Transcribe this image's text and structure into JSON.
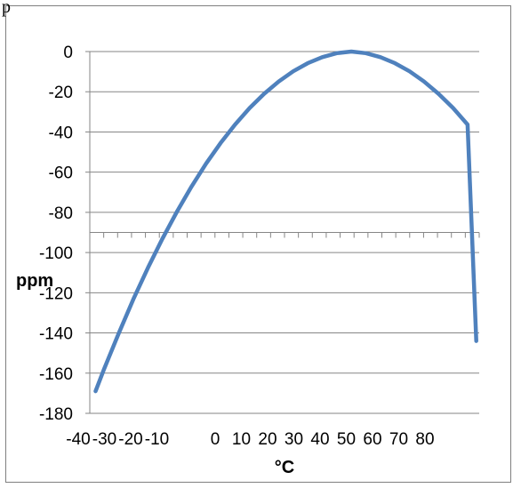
{
  "top_fragment": "p",
  "chart_data": {
    "type": "line",
    "title": "",
    "xlabel": "°C",
    "ylabel": "ppm",
    "xlim": [
      -45,
      89
    ],
    "ylim": [
      -180,
      0
    ],
    "x_ticks": [
      "-40",
      "-30",
      "-20",
      "-10",
      "0",
      "10",
      "20",
      "30",
      "40",
      "50",
      "60",
      "70",
      "80"
    ],
    "y_ticks": [
      "0",
      "-20",
      "-40",
      "-60",
      "-80",
      "-100",
      "-120",
      "-140",
      "-160",
      "-180"
    ],
    "x_axis_at_y": -90,
    "grid": "horizontal",
    "series": [
      {
        "color": "#4F81BD",
        "x": [
          -43,
          -40,
          -35,
          -30,
          -25,
          -20,
          -15,
          -10,
          -5,
          0,
          5,
          10,
          15,
          20,
          25,
          30,
          35,
          40,
          45,
          50,
          55,
          60,
          65,
          70,
          75,
          80,
          85,
          88
        ],
        "y": [
          -169,
          -157.7,
          -140,
          -123.2,
          -107.6,
          -93.1,
          -79.6,
          -67.2,
          -55.8,
          -45.5,
          -36.3,
          -28.1,
          -21,
          -14.9,
          -9.8,
          -5.8,
          -2.8,
          -0.8,
          0,
          -0.8,
          -2.8,
          -5.8,
          -9.8,
          -14.9,
          -21,
          -28.1,
          -36.3,
          -144
        ]
      }
    ]
  }
}
